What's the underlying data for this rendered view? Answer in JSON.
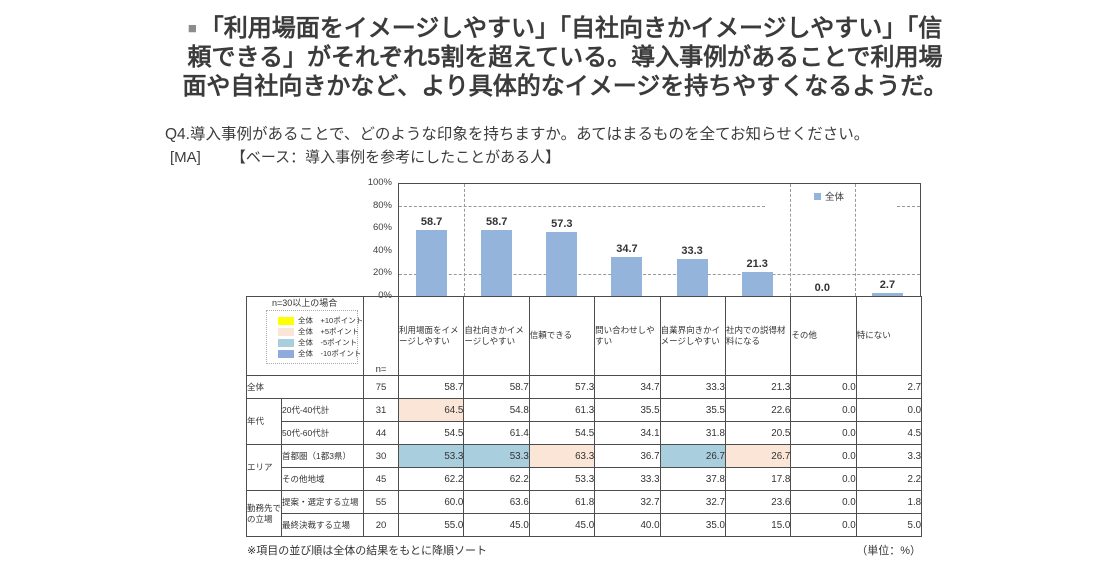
{
  "headline": {
    "bullet": "■",
    "lines": [
      "「利用場面をイメージしやすい」「自社向きかイメージしやすい」「信",
      "頼できる」がそれぞれ5割を超えている。導入事例があることで利用場",
      "面や自社向きかなど、より具体的なイメージを持ちやすくなるようだ。"
    ]
  },
  "question": "Q4.導入事例があることで、どのような印象を持ちますか。あてはまるものを全てお知らせください。",
  "base": {
    "ma_label": "[MA]",
    "base_label": "【ベース：導入事例を参考にしたことがある人】"
  },
  "chart_data": {
    "type": "bar",
    "title": "",
    "categories": [
      "利用場面をイメージしやすい",
      "自社向きかイメージしやすい",
      "信頼できる",
      "問い合わせしやすい",
      "自業界向きかイメージしやすい",
      "社内での説得材料になる",
      "その他",
      "特にない"
    ],
    "series": [
      {
        "name": "全体",
        "values": [
          58.7,
          58.7,
          57.3,
          34.7,
          33.3,
          21.3,
          0.0,
          2.7
        ]
      }
    ],
    "ylim": [
      0,
      100
    ],
    "ytick_labels": [
      "100%",
      "80%",
      "60%",
      "40%",
      "20%",
      "0%"
    ],
    "gridlines_pct": [
      80,
      20
    ],
    "legend_label": "全体",
    "legend_position": "top-right",
    "bar_color": "#95B4DC",
    "unit": "%"
  },
  "threshold_legend": {
    "title": "n=30以上の場合",
    "items": [
      {
        "key": "plus10",
        "label": "全体　+10ポイント",
        "color": "#FFFF00"
      },
      {
        "key": "plus5",
        "label": "全体　+5ポイント",
        "color": "#FBE5D6"
      },
      {
        "key": "minus5",
        "label": "全体　-5ポイント",
        "color": "#A9CEDE"
      },
      {
        "key": "minus10",
        "label": "全体　-10ポイント",
        "color": "#8FAADC"
      }
    ]
  },
  "table": {
    "n_header": "n=",
    "rows": [
      {
        "group": "全体",
        "group_colspan": 2,
        "n": "75",
        "values": [
          "58.7",
          "58.7",
          "57.3",
          "34.7",
          "33.3",
          "21.3",
          "0.0",
          "2.7"
        ],
        "highlights": [
          null,
          null,
          null,
          null,
          null,
          null,
          null,
          null
        ]
      },
      {
        "group": "年代",
        "group_rowspan": 2,
        "label": "20代-40代計",
        "n": "31",
        "values": [
          "64.5",
          "54.8",
          "61.3",
          "35.5",
          "35.5",
          "22.6",
          "0.0",
          "0.0"
        ],
        "highlights": [
          "plus5",
          null,
          null,
          null,
          null,
          null,
          null,
          null
        ]
      },
      {
        "label": "50代-60代計",
        "n": "44",
        "values": [
          "54.5",
          "61.4",
          "54.5",
          "34.1",
          "31.8",
          "20.5",
          "0.0",
          "4.5"
        ],
        "highlights": [
          null,
          null,
          null,
          null,
          null,
          null,
          null,
          null
        ]
      },
      {
        "group": "エリア",
        "group_rowspan": 2,
        "label": "首都圏（1都3県）",
        "n": "30",
        "values": [
          "53.3",
          "53.3",
          "63.3",
          "36.7",
          "26.7",
          "26.7",
          "0.0",
          "3.3"
        ],
        "highlights": [
          "minus5",
          "minus5",
          "plus5",
          null,
          "minus5",
          "plus5",
          null,
          null
        ]
      },
      {
        "label": "その他地域",
        "n": "45",
        "values": [
          "62.2",
          "62.2",
          "53.3",
          "33.3",
          "37.8",
          "17.8",
          "0.0",
          "2.2"
        ],
        "highlights": [
          null,
          null,
          null,
          null,
          null,
          null,
          null,
          null
        ]
      },
      {
        "group": "勤務先での立場",
        "group_rowspan": 2,
        "label": "提案・選定する立場",
        "n": "55",
        "values": [
          "60.0",
          "63.6",
          "61.8",
          "32.7",
          "32.7",
          "23.6",
          "0.0",
          "1.8"
        ],
        "highlights": [
          null,
          null,
          null,
          null,
          null,
          null,
          null,
          null
        ]
      },
      {
        "label": "最終決裁する立場",
        "n": "20",
        "values": [
          "55.0",
          "45.0",
          "45.0",
          "40.0",
          "35.0",
          "15.0",
          "0.0",
          "5.0"
        ],
        "highlights": [
          null,
          null,
          null,
          null,
          null,
          null,
          null,
          null
        ]
      }
    ]
  },
  "notes": {
    "sort_note": "※項目の並び順は全体の結果をもとに降順ソート",
    "unit_note": "（単位：%）"
  }
}
